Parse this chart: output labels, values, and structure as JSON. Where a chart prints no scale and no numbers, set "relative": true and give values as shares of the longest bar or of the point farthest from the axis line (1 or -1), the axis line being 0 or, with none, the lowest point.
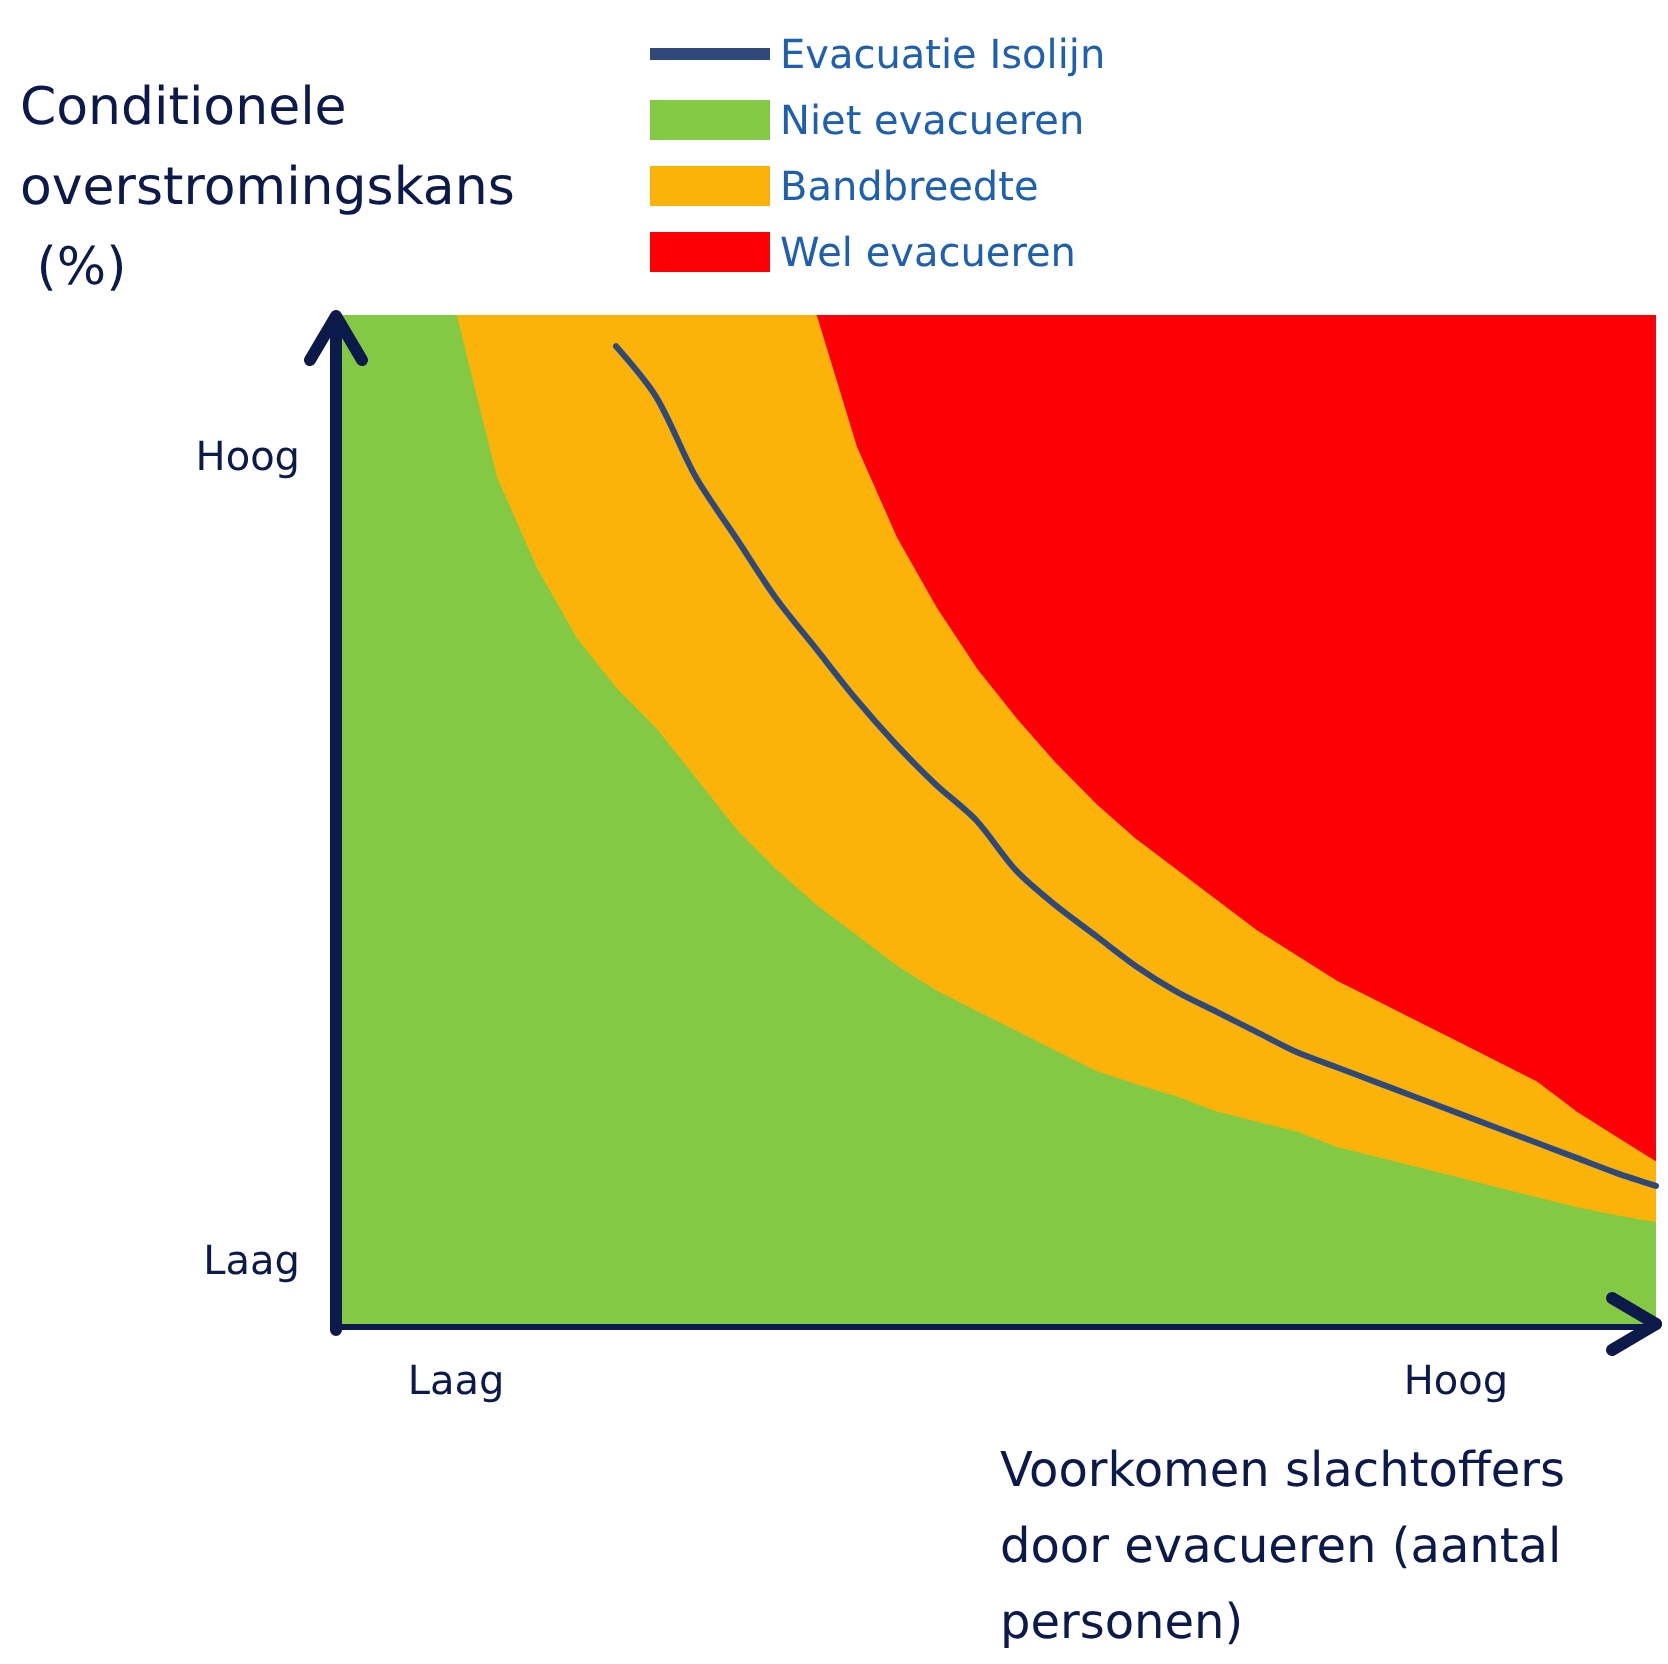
{
  "chart_data": {
    "type": "area",
    "relative": true,
    "xlabel": "Voorkomen slachtoffers door evacueren (aantal personen)",
    "ylabel": "Conditionele overstromingskans (%)",
    "annotations": [
      "Hoog",
      "Laag"
    ],
    "categories": [
      null,
      null,
      null,
      "Laag",
      null,
      null,
      null,
      null,
      null,
      null,
      null,
      null,
      null,
      null,
      null,
      null,
      null,
      null,
      null,
      null,
      null,
      null,
      null,
      null,
      null,
      null,
      null,
      null,
      "Hoog",
      null,
      null,
      null,
      null,
      null
    ],
    "legend": "top",
    "grid": false,
    "series": [
      {
        "name": "Evacuatie Isolijn",
        "type": "line",
        "color": "#2f4a7a",
        "values": [
          null,
          null,
          null,
          null,
          null,
          null,
          null,
          0.97,
          0.92,
          0.84,
          0.78,
          0.72,
          0.67,
          0.62,
          0.575,
          0.535,
          0.5,
          0.45,
          0.415,
          0.385,
          0.355,
          0.33,
          0.31,
          0.29,
          0.27,
          0.255,
          0.24,
          0.225,
          0.21,
          0.195,
          0.18,
          0.165,
          0.15,
          0.137
        ]
      },
      {
        "name": "Niet evacueren",
        "color": "#84c943",
        "values": [
          1,
          1,
          1,
          1,
          0.84,
          0.75,
          0.68,
          0.63,
          0.59,
          0.54,
          0.49,
          0.45,
          0.415,
          0.385,
          0.355,
          0.33,
          0.31,
          0.29,
          0.27,
          0.25,
          0.237,
          0.225,
          0.21,
          0.2,
          0.19,
          0.175,
          0.165,
          0.155,
          0.145,
          0.135,
          0.125,
          0.115,
          0.107,
          0.1
        ]
      },
      {
        "name": "Bandbreedte",
        "color": "#fbb30a",
        "values": [
          null,
          null,
          null,
          1,
          1,
          1,
          1,
          1,
          1,
          1,
          1,
          1,
          1,
          0.87,
          0.78,
          0.71,
          0.65,
          0.6,
          0.555,
          0.515,
          0.48,
          0.45,
          0.42,
          0.39,
          0.365,
          0.34,
          0.32,
          0.3,
          0.28,
          0.26,
          0.24,
          0.21,
          0.185,
          0.16
        ]
      },
      {
        "name": "Wel evacueren",
        "color": "#fd0006",
        "values": [
          null,
          null,
          null,
          null,
          null,
          null,
          null,
          null,
          null,
          null,
          null,
          null,
          1,
          1,
          1,
          1,
          1,
          1,
          1,
          1,
          1,
          1,
          1,
          1,
          1,
          1,
          1,
          1,
          1,
          1,
          1,
          1,
          1,
          1
        ]
      }
    ]
  }
}
